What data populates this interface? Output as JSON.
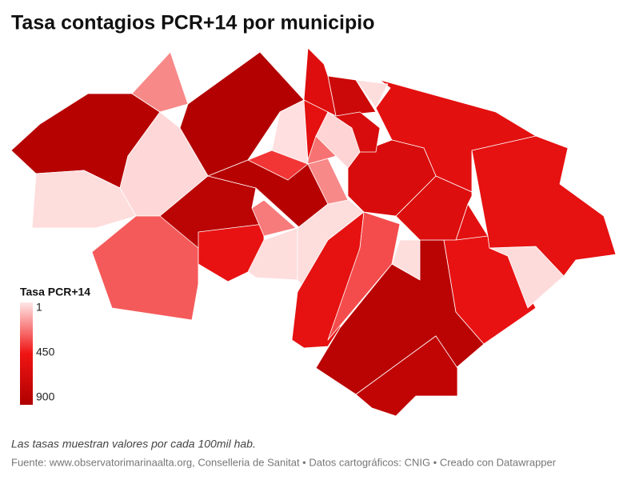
{
  "title": "Tasa contagios PCR+14 por municipio",
  "legend": {
    "title": "Tasa PCR+14",
    "ticks": [
      1,
      450,
      900
    ],
    "colors": [
      "#ffe6e6",
      "#f01414",
      "#b00000"
    ]
  },
  "map": {
    "values": [
      850,
      200,
      880,
      20,
      30,
      300,
      820,
      500,
      20,
      230,
      850,
      380,
      15,
      20,
      200,
      520,
      330,
      20,
      830,
      780,
      500,
      25,
      520,
      550,
      540,
      590,
      620,
      700,
      20,
      580,
      620,
      40,
      250,
      530
    ]
  },
  "note": "Las tasas muestran valores por cada 100mil hab.",
  "source": "Fuente: www.observatorimarinaalta.org, Conselleria de Sanitat • Datos cartográficos: CNIG • Creado con Datawrapper"
}
